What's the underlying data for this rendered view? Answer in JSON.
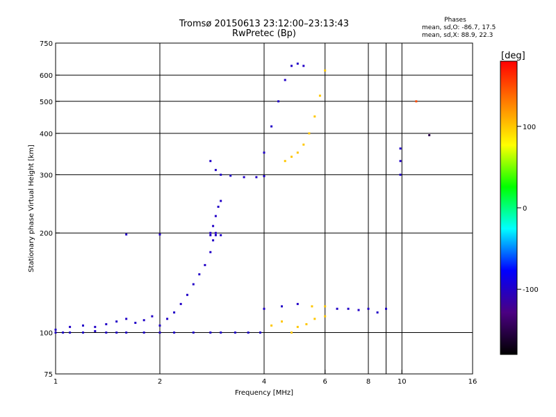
{
  "chart_data": {
    "type": "scatter",
    "title": "Tromsø 20150613 23:12:00–23:13:43",
    "subtitle": "RwPretec (Bp)",
    "xlabel": "Frequency [MHz]",
    "ylabel": "Stationary phase Virtual Height [km]",
    "x_scale": "log",
    "y_scale": "log",
    "xlim": [
      1,
      16
    ],
    "ylim": [
      75,
      750
    ],
    "x_ticks": [
      1,
      2,
      4,
      6,
      8,
      9,
      10,
      16
    ],
    "x_tick_labels": [
      "1",
      "2",
      "4",
      "6",
      "8",
      "",
      "10",
      "16"
    ],
    "y_ticks": [
      75,
      100,
      200,
      300,
      400,
      500,
      600,
      750
    ],
    "grid": true,
    "info": {
      "heading": "Phases",
      "line_o": "mean, sd,O: -86.7, 17.5",
      "line_x": "mean, sd,X:  88.9, 22.3"
    },
    "colorbar": {
      "title": "[deg]",
      "min": -180,
      "max": 180,
      "ticks": [
        -100,
        0,
        100
      ],
      "tick_labels": [
        "-100",
        "0",
        "100"
      ],
      "colors": [
        "#000000",
        "#4b0082",
        "#0000ff",
        "#00ffff",
        "#00ff00",
        "#ffff00",
        "#ff8000",
        "#ff0000"
      ]
    },
    "series": [
      {
        "x": [
          1.0,
          1.05,
          1.1,
          1.2,
          1.3,
          1.4,
          1.5,
          1.6,
          1.8,
          2.0,
          2.2,
          2.5,
          2.8,
          3.0,
          3.3,
          3.6,
          3.9
        ],
        "y": [
          100,
          100,
          100,
          100,
          101,
          100,
          100,
          100,
          100,
          100,
          100,
          100,
          100,
          100,
          100,
          100,
          100
        ],
        "phase": [
          -100,
          -100,
          -100,
          -100,
          -100,
          -100,
          -100,
          -100,
          -100,
          -100,
          -100,
          -100,
          -100,
          -100,
          -100,
          -100,
          -100
        ]
      },
      {
        "x": [
          1.0,
          1.1,
          1.2,
          1.3,
          1.4,
          1.5,
          1.6,
          1.7,
          1.8,
          1.9
        ],
        "y": [
          102,
          104,
          105,
          104,
          106,
          108,
          110,
          107,
          109,
          112
        ],
        "phase": [
          -100,
          -100,
          -100,
          -100,
          -100,
          -100,
          -100,
          -100,
          -100,
          -100
        ]
      },
      {
        "x": [
          2.0,
          2.1,
          2.2,
          2.3,
          2.4,
          2.5,
          2.6,
          2.7,
          2.8,
          2.85,
          2.9
        ],
        "y": [
          105,
          110,
          115,
          122,
          130,
          140,
          150,
          160,
          175,
          190,
          200
        ],
        "phase": [
          -100,
          -100,
          -100,
          -100,
          -100,
          -100,
          -100,
          -100,
          -100,
          -100,
          -100
        ]
      },
      {
        "x": [
          2.8,
          2.85,
          2.9,
          2.95,
          3.0
        ],
        "y": [
          200,
          210,
          225,
          240,
          250
        ],
        "phase": [
          -100,
          -100,
          -100,
          -100,
          -100
        ]
      },
      {
        "x": [
          1.6,
          2.0,
          2.8,
          2.9,
          3.0
        ],
        "y": [
          198,
          198,
          197,
          197,
          197
        ],
        "phase": [
          -100,
          -100,
          -100,
          -100,
          -100
        ]
      },
      {
        "x": [
          2.8,
          2.9,
          3.0,
          3.2,
          3.5,
          3.8,
          4.0
        ],
        "y": [
          330,
          310,
          300,
          298,
          295,
          295,
          297
        ],
        "phase": [
          -100,
          -100,
          -100,
          -100,
          -100,
          -100,
          -100
        ]
      },
      {
        "x": [
          4.0,
          4.2,
          4.4,
          4.6,
          4.8,
          5.0,
          5.2
        ],
        "y": [
          350,
          420,
          500,
          580,
          640,
          650,
          640
        ],
        "phase": [
          -100,
          -100,
          -100,
          -100,
          -100,
          -100,
          -100
        ]
      },
      {
        "x": [
          4.6,
          4.8,
          5.0,
          5.2,
          5.4,
          5.6,
          5.8,
          6.0
        ],
        "y": [
          330,
          340,
          350,
          370,
          400,
          450,
          520,
          620
        ],
        "phase": [
          100,
          100,
          100,
          100,
          100,
          100,
          100,
          100
        ]
      },
      {
        "x": [
          4.0,
          4.5,
          5.0,
          5.5,
          6.0,
          6.5,
          7.0,
          7.5,
          8.0,
          8.5,
          9.0
        ],
        "y": [
          118,
          120,
          122,
          120,
          120,
          118,
          118,
          117,
          118,
          115,
          118
        ],
        "phase": [
          -100,
          -100,
          -100,
          100,
          100,
          -100,
          -100,
          -100,
          -100,
          -100,
          -100
        ]
      },
      {
        "x": [
          4.2,
          4.5,
          4.8,
          5.0,
          5.3,
          5.6,
          6.0
        ],
        "y": [
          105,
          108,
          100,
          104,
          106,
          110,
          112
        ],
        "phase": [
          100,
          100,
          100,
          100,
          100,
          100,
          100
        ]
      },
      {
        "x": [
          9.9,
          9.9,
          9.9,
          11.0,
          12.0
        ],
        "y": [
          360,
          330,
          300,
          500,
          395
        ],
        "phase": [
          -100,
          -100,
          -100,
          150,
          -150
        ]
      }
    ]
  }
}
